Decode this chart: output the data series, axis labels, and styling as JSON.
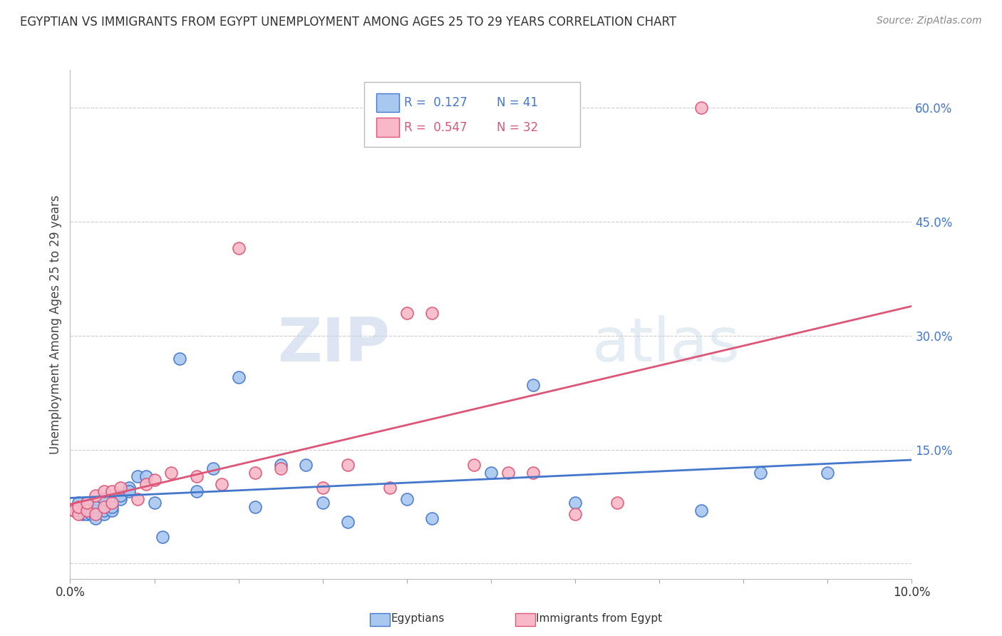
{
  "title": "EGYPTIAN VS IMMIGRANTS FROM EGYPT UNEMPLOYMENT AMONG AGES 25 TO 29 YEARS CORRELATION CHART",
  "source": "Source: ZipAtlas.com",
  "ylabel": "Unemployment Among Ages 25 to 29 years",
  "xlim": [
    0.0,
    0.1
  ],
  "ylim": [
    -0.02,
    0.65
  ],
  "xticks": [
    0.0,
    0.01,
    0.02,
    0.03,
    0.04,
    0.05,
    0.06,
    0.07,
    0.08,
    0.09,
    0.1
  ],
  "xtick_labels": [
    "0.0%",
    "",
    "",
    "",
    "",
    "",
    "",
    "",
    "",
    "",
    "10.0%"
  ],
  "yticks": [
    0.0,
    0.15,
    0.3,
    0.45,
    0.6
  ],
  "ytick_labels": [
    "",
    "15.0%",
    "30.0%",
    "45.0%",
    "60.0%"
  ],
  "color_egyptians": "#a8c8f0",
  "color_immigrants": "#f8b8c8",
  "line_color_egyptians": "#4477cc",
  "line_color_immigrants": "#dd5577",
  "legend_R_egyptians": "R =  0.127",
  "legend_N_egyptians": "N = 41",
  "legend_R_immigrants": "R =  0.547",
  "legend_N_immigrants": "N = 32",
  "egyptians_x": [
    0.0005,
    0.001,
    0.001,
    0.0015,
    0.002,
    0.002,
    0.002,
    0.0025,
    0.003,
    0.003,
    0.003,
    0.004,
    0.004,
    0.004,
    0.005,
    0.005,
    0.006,
    0.006,
    0.007,
    0.007,
    0.008,
    0.009,
    0.01,
    0.011,
    0.013,
    0.015,
    0.017,
    0.02,
    0.022,
    0.025,
    0.028,
    0.03,
    0.033,
    0.04,
    0.043,
    0.05,
    0.055,
    0.06,
    0.075,
    0.082,
    0.09
  ],
  "egyptians_y": [
    0.07,
    0.07,
    0.08,
    0.065,
    0.065,
    0.07,
    0.08,
    0.065,
    0.06,
    0.07,
    0.075,
    0.065,
    0.07,
    0.085,
    0.07,
    0.075,
    0.085,
    0.09,
    0.1,
    0.095,
    0.115,
    0.115,
    0.08,
    0.035,
    0.27,
    0.095,
    0.125,
    0.245,
    0.075,
    0.13,
    0.13,
    0.08,
    0.055,
    0.085,
    0.06,
    0.12,
    0.235,
    0.08,
    0.07,
    0.12,
    0.12
  ],
  "immigrants_x": [
    0.0005,
    0.001,
    0.001,
    0.002,
    0.002,
    0.003,
    0.003,
    0.004,
    0.004,
    0.005,
    0.005,
    0.006,
    0.008,
    0.009,
    0.01,
    0.012,
    0.015,
    0.018,
    0.02,
    0.022,
    0.025,
    0.03,
    0.033,
    0.038,
    0.04,
    0.043,
    0.048,
    0.052,
    0.055,
    0.06,
    0.065,
    0.075
  ],
  "immigrants_y": [
    0.07,
    0.065,
    0.075,
    0.07,
    0.08,
    0.065,
    0.09,
    0.075,
    0.095,
    0.08,
    0.095,
    0.1,
    0.085,
    0.105,
    0.11,
    0.12,
    0.115,
    0.105,
    0.415,
    0.12,
    0.125,
    0.1,
    0.13,
    0.1,
    0.33,
    0.33,
    0.13,
    0.12,
    0.12,
    0.065,
    0.08,
    0.6
  ],
  "watermark_zip": "ZIP",
  "watermark_atlas": "atlas",
  "background_color": "#ffffff",
  "grid_color": "#cccccc"
}
